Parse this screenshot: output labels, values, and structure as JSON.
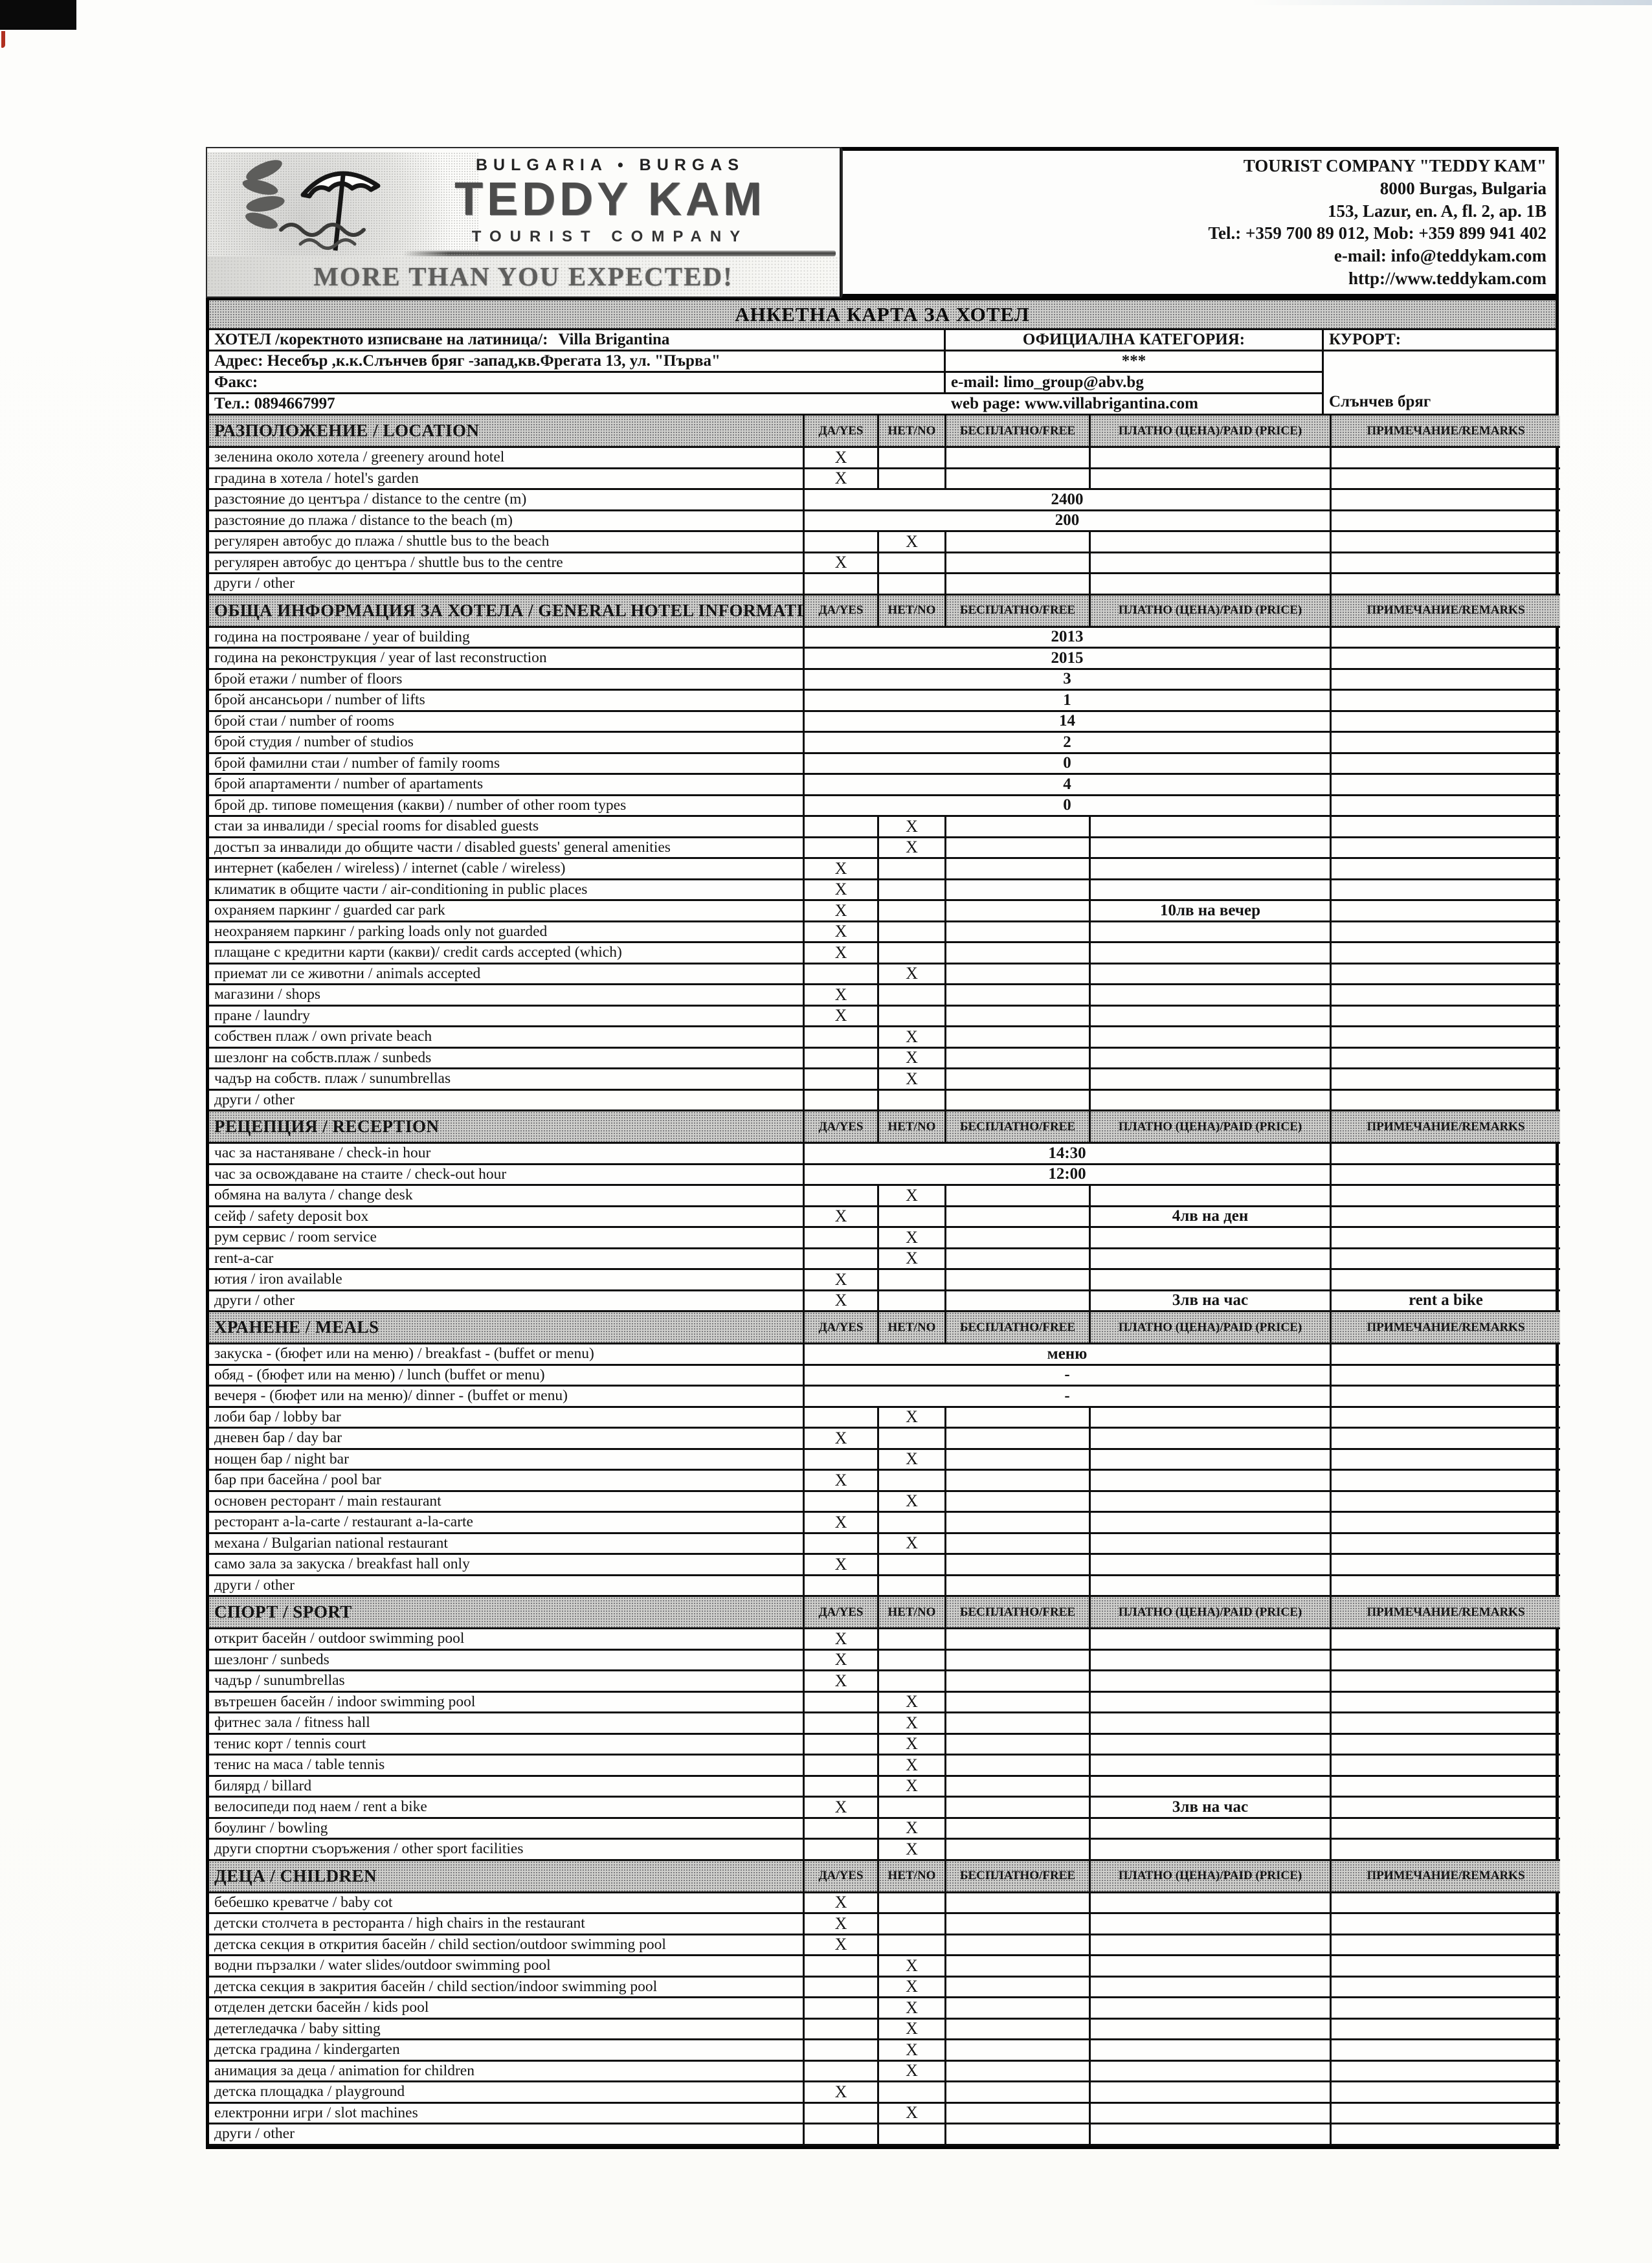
{
  "letterhead": {
    "region": "BULGARIA  •  BURGAS",
    "brand": "TEDDY KAM",
    "brand_sub": "TOURIST COMPANY",
    "tagline": "MORE THAN YOU EXPECTED!"
  },
  "contact": {
    "company": "TOURIST COMPANY \"TEDDY KAM\"",
    "address1": "8000 Burgas, Bulgaria",
    "address2": "153, Lazur, en. A, fl. 2, ap. 1B",
    "phones": "Tel.: +359 700 89 012, Mob: +359 899 941 402",
    "email": "e-mail: info@teddykam.com",
    "web": "http://www.teddykam.com"
  },
  "form": {
    "title": "АНКЕТНА КАРТА ЗА ХОТЕЛ",
    "hotel_info": {
      "hotel_label": "ХОТЕЛ /коректното изписване на латиница/:",
      "hotel_value": "Villa Brigantina",
      "address": "Адрес: Несебър ,к.к.Слънчев бряг -запад,кв.Фрегата 13, ул. \"Първа\"",
      "fax": "Факс:",
      "tel": "Тел.: 0894667997",
      "official_category_label": "ОФИЦИАЛНА КАТЕГОРИЯ:",
      "official_category_value": "***",
      "resort_label": "КУРОРТ:",
      "resort_value": "Слънчев бряг",
      "email": "e-mail: limo_group@abv.bg",
      "web": "web page: www.villabrigantina.com"
    },
    "columns": {
      "yes": "ДА/YES",
      "no": "НЕТ/NO",
      "free": "БЕСПЛАТНО/FREE",
      "paid": "ПЛАТНО (ЦЕНА)/PAID (PRICE)",
      "remarks": "ПРИМЕЧАНИЕ/REMARKS"
    },
    "sections": [
      {
        "title": "РАЗПОЛОЖЕНИЕ / LOCATION",
        "rows": [
          {
            "label": "зеленина около хотела / greenery around hotel",
            "yes": "X"
          },
          {
            "label": "градина в хотела / hotel's garden",
            "yes": "X"
          },
          {
            "label": "разстояние до центъра / distance to the centre (m)",
            "merged": "2400"
          },
          {
            "label": "разстояние до плажа / distance to the beach (m)",
            "merged": "200"
          },
          {
            "label": "регулярен автобус до плажа / shuttle bus to the beach",
            "no": "X"
          },
          {
            "label": "регулярен автобус до центъра / shuttle bus to the centre",
            "yes": "X"
          },
          {
            "label": "други / other"
          }
        ]
      },
      {
        "title": "ОБЩА ИНФОРМАЦИЯ ЗА ХОТЕЛА / GENERAL HOTEL INFORMATION",
        "rows": [
          {
            "label": "година на построяване / year of building",
            "merged": "2013"
          },
          {
            "label": "година на реконструкция / year of last reconstruction",
            "merged": "2015"
          },
          {
            "label": "брой етажи / number of floors",
            "merged": "3"
          },
          {
            "label": "брой ансансьори / number of lifts",
            "merged": "1"
          },
          {
            "label": "брой стаи / number of rooms",
            "merged": "14"
          },
          {
            "label": "брой студия / number of studios",
            "merged": "2"
          },
          {
            "label": "брой фамилни стаи / number of family rooms",
            "merged": "0"
          },
          {
            "label": "брой апартаменти / number of apartaments",
            "merged": "4"
          },
          {
            "label": "брой др. типове помещения (какви) / number of other room types",
            "merged": "0"
          },
          {
            "label": "стаи за инвалиди / special rooms for disabled guests",
            "no": "X"
          },
          {
            "label": "достъп за инвалиди до общите части / disabled guests' general amenities",
            "no": "X"
          },
          {
            "label": "интернет (кабелен / wireless) / internet (cable / wireless)",
            "yes": "X"
          },
          {
            "label": "климатик в общите части / air-conditioning in public places",
            "yes": "X"
          },
          {
            "label": "охраняем паркинг / guarded car park",
            "yes": "X",
            "paid": "10лв на вечер"
          },
          {
            "label": "неохраняем паркинг / parking loads only not guarded",
            "yes": "X"
          },
          {
            "label": "плащане с кредитни карти (какви)/  credit cards accepted (which)",
            "yes": "X"
          },
          {
            "label": "приемат ли се животни / animals accepted",
            "no": "X"
          },
          {
            "label": "магазини / shops",
            "yes": "X"
          },
          {
            "label": "пране / laundry",
            "yes": "X"
          },
          {
            "label": "собствен плаж / own private beach",
            "no": "X"
          },
          {
            "label": "шезлонг на собств.плаж  / sunbeds",
            "no": "X"
          },
          {
            "label": "чадър на собств. плаж / sunumbrellas",
            "no": "X"
          },
          {
            "label": "други / other"
          }
        ]
      },
      {
        "title": "РЕЦЕПЦИЯ / RECEPTION",
        "rows": [
          {
            "label": "час за настаняване / check-in hour",
            "merged": "14:30"
          },
          {
            "label": "час за освождаване на стаите / check-out hour",
            "merged": "12:00"
          },
          {
            "label": "обмяна на валута / change desk",
            "no": "X"
          },
          {
            "label": "сейф  / safety deposit box",
            "yes": "X",
            "paid": "4лв на ден"
          },
          {
            "label": "рум сервис / room service",
            "no": "X"
          },
          {
            "label": "rent-a-car",
            "no": "X"
          },
          {
            "label": "ютия / iron available",
            "yes": "X"
          },
          {
            "label": "други / other",
            "yes": "X",
            "paid": "3лв на час",
            "remarks": "rent a bike"
          }
        ]
      },
      {
        "title": "ХРАНЕНЕ / MEALS",
        "rows": [
          {
            "label": "закуска - (бюфет или на меню) / breakfast - (buffet or menu)",
            "merged": "меню"
          },
          {
            "label": "обяд - (бюфет или на меню) / lunch (buffet or menu)",
            "merged": "-"
          },
          {
            "label": "вечеря - (бюфет или на меню)/ dinner - (buffet or menu)",
            "merged": "-"
          },
          {
            "label": "лоби бар / lobby bar",
            "no": "X"
          },
          {
            "label": "дневен бар / day bar",
            "yes": "X"
          },
          {
            "label": "нощен бар / night bar",
            "no": "X"
          },
          {
            "label": "бар при басейна / pool bar",
            "yes": "X"
          },
          {
            "label": "основен ресторант / main restaurant",
            "no": "X"
          },
          {
            "label": "ресторант a-la-carte / restaurant a-la-carte",
            "yes": "X"
          },
          {
            "label": "механа / Bulgarian national restaurant",
            "no": "X"
          },
          {
            "label": "само зала за закуска / breakfast hall only",
            "yes": "X"
          },
          {
            "label": "други / other"
          }
        ]
      },
      {
        "title": "СПОРТ / SPORT",
        "rows": [
          {
            "label": "открит басейн / outdoor swimming pool",
            "yes": "X"
          },
          {
            "label": "шезлонг  / sunbeds",
            "yes": "X"
          },
          {
            "label": "чадър  / sunumbrellas",
            "yes": "X"
          },
          {
            "label": "вътрешен басейн / indoor swimming pool",
            "no": "X"
          },
          {
            "label": "фитнес зала / fitness hall",
            "no": "X"
          },
          {
            "label": "тенис корт / tennis court",
            "no": "X"
          },
          {
            "label": "тенис на маса / table tennis",
            "no": "X"
          },
          {
            "label": "билярд / billard",
            "no": "X"
          },
          {
            "label": "велосипеди под наем / rent a bike",
            "yes": "X",
            "paid": "3лв на час"
          },
          {
            "label": "боулинг / bowling",
            "no": "X"
          },
          {
            "label": "други спортни съоръжения / other sport facilities",
            "no": "X"
          }
        ]
      },
      {
        "title": "ДЕЦА / CHILDREN",
        "rows": [
          {
            "label": "бебешко креватче / baby cot",
            "yes": "X"
          },
          {
            "label": "детски столчета в ресторанта / high chairs in the restaurant",
            "yes": "X"
          },
          {
            "label": "детска секция в открития басейн / child section/outdoor swimming pool",
            "yes": "X"
          },
          {
            "label": "водни пързалки / water slides/outdoor swimming pool",
            "no": "X"
          },
          {
            "label": "детска секция в закрития басейн / child section/indoor swimming pool",
            "no": "X"
          },
          {
            "label": "отделен детски басейн / kids pool",
            "no": "X"
          },
          {
            "label": "детегледачка / baby sitting",
            "no": "X"
          },
          {
            "label": "детска градина / kindergarten",
            "no": "X"
          },
          {
            "label": "анимация за деца / animation for children",
            "no": "X"
          },
          {
            "label": "детска площадка / playground",
            "yes": "X"
          },
          {
            "label": "електронни игри / slot machines",
            "no": "X"
          },
          {
            "label": "други / other"
          }
        ]
      }
    ]
  }
}
